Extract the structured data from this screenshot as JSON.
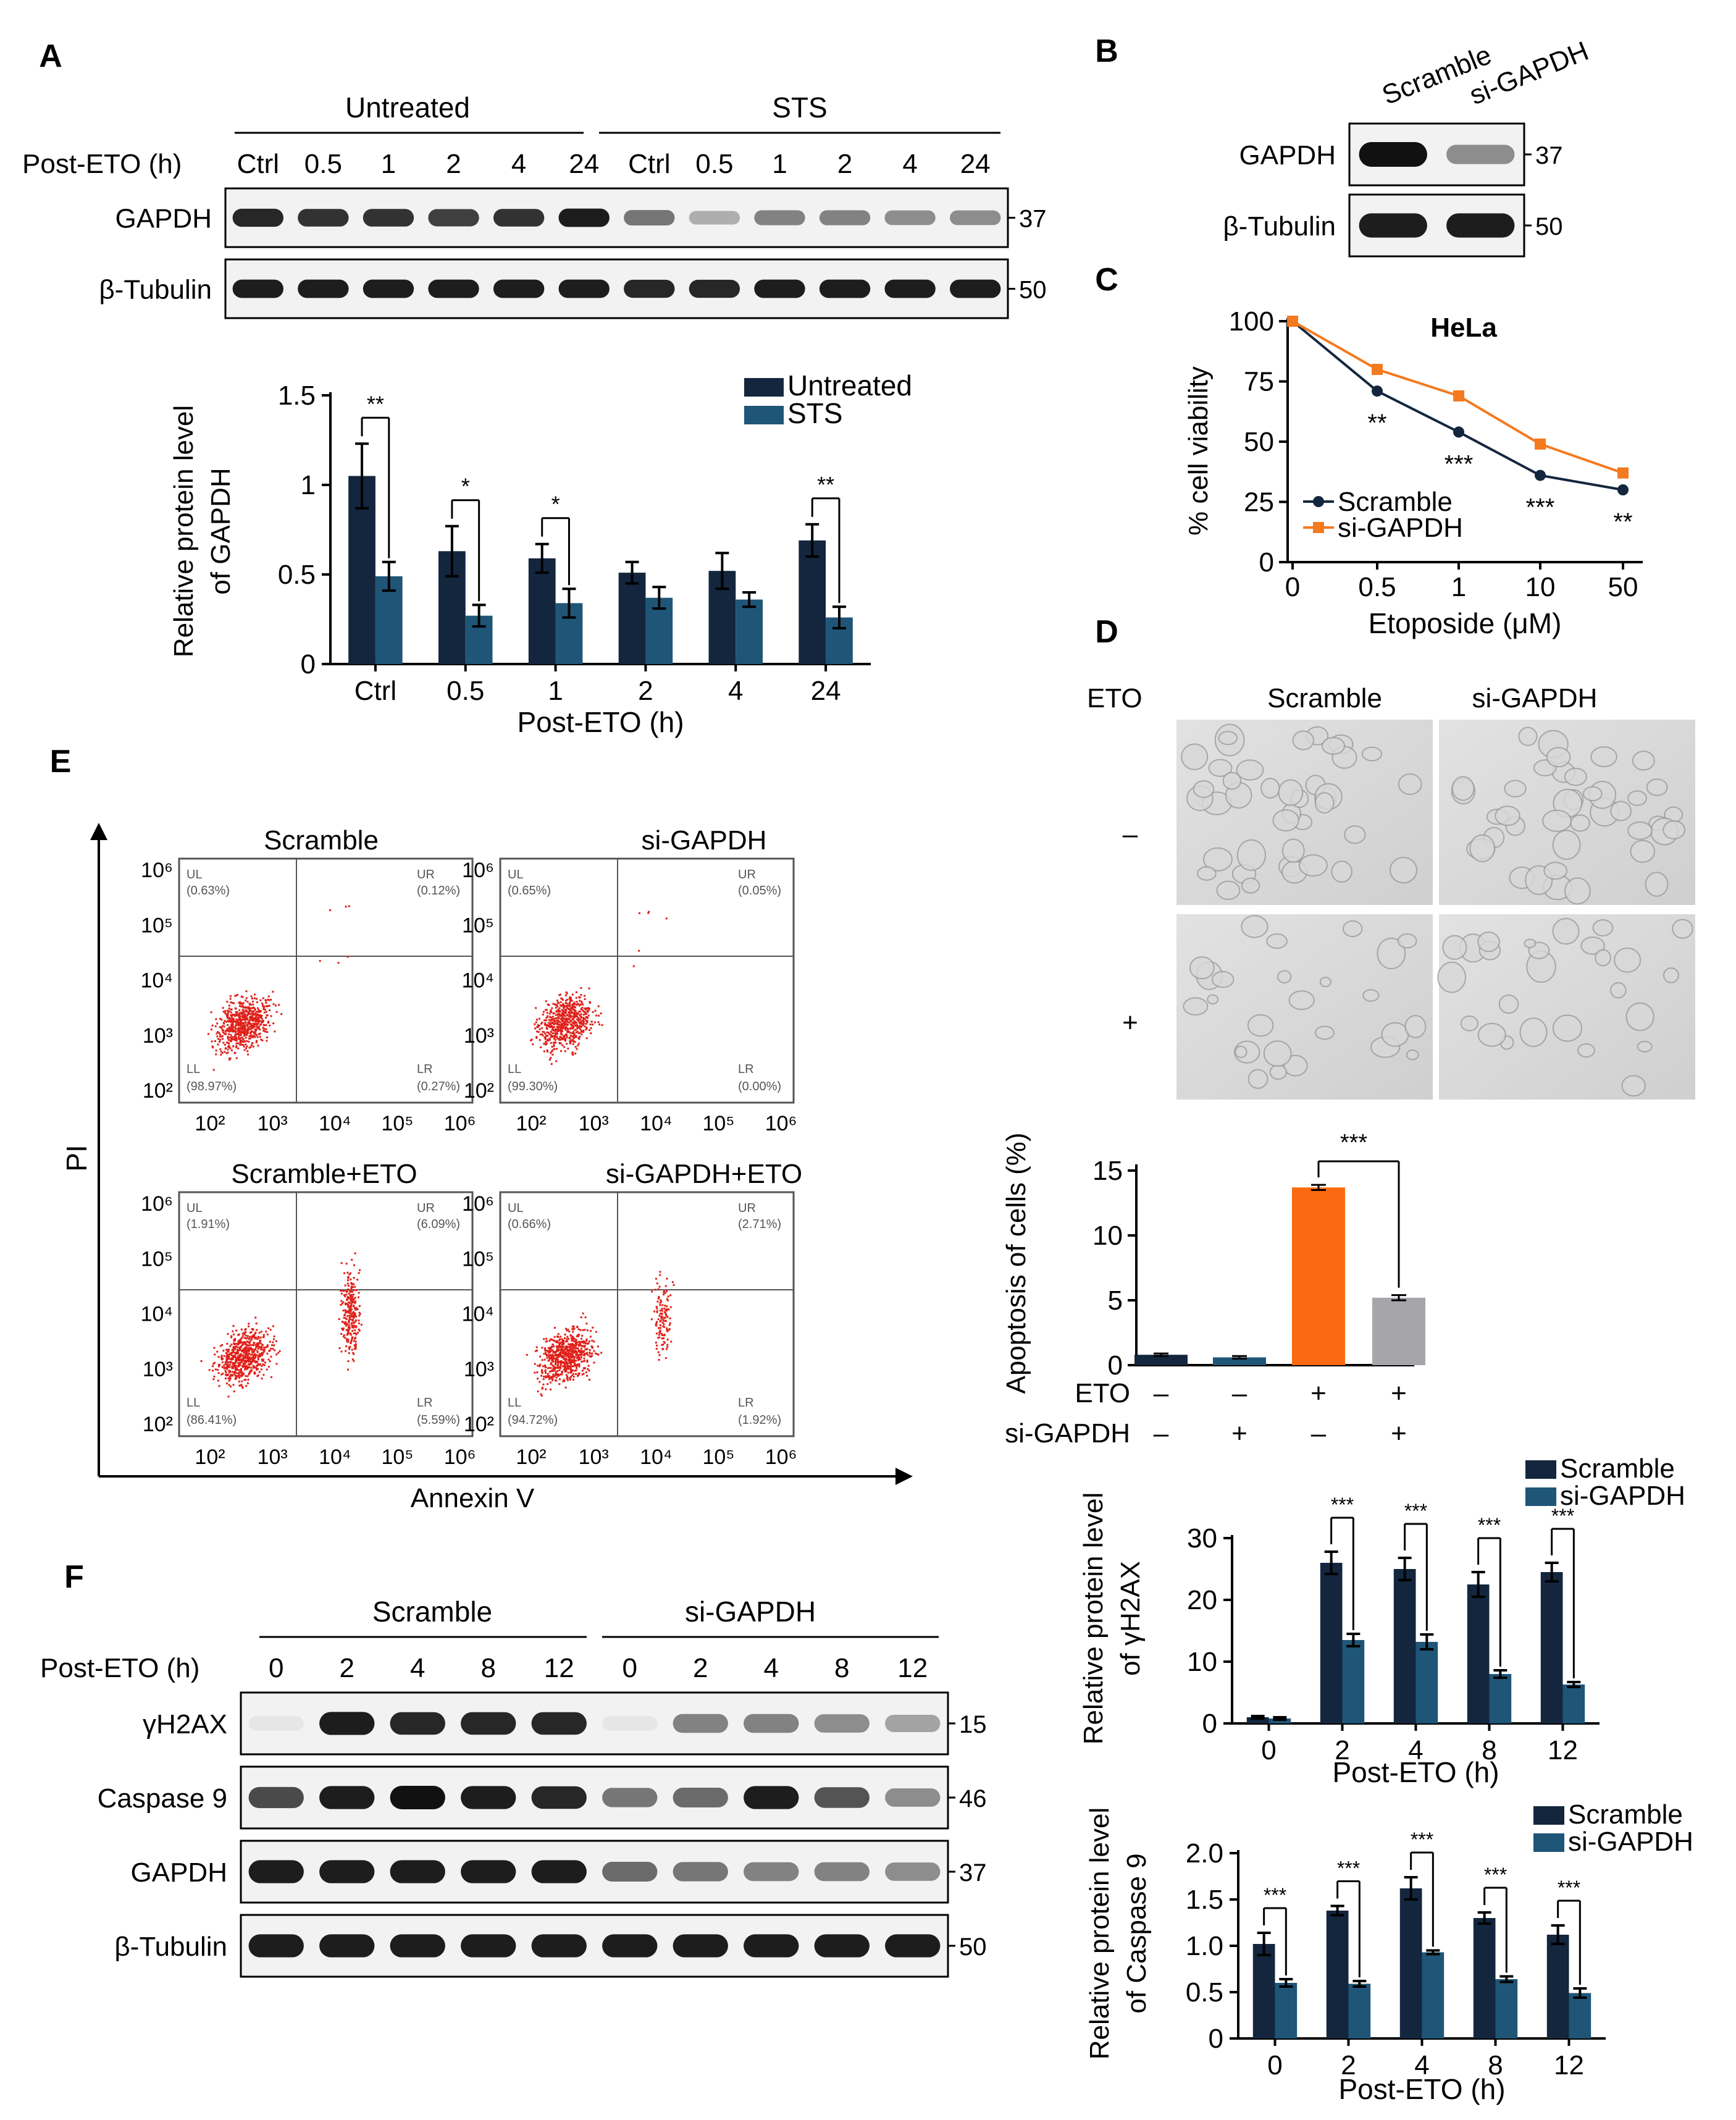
{
  "panel_labels": {
    "a": "A",
    "b": "B",
    "c": "C",
    "d": "D",
    "e": "E",
    "f": "F"
  },
  "colors": {
    "dark": "#13263e",
    "teal": "#1f5577",
    "orange": "#f47a20",
    "orange_bar": "#fb6a10",
    "gray": "#a6a6aa",
    "flow": "#e0201a"
  },
  "panel_a": {
    "blot": {
      "group_left": "Untreated",
      "group_right": "STS",
      "post_label": "Post-ETO (h)",
      "lanes": [
        "Ctrl",
        "0.5",
        "1",
        "2",
        "4",
        "24",
        "Ctrl",
        "0.5",
        "1",
        "2",
        "4",
        "24"
      ],
      "rows": [
        {
          "name": "GAPDH",
          "kda": "37",
          "intensity": [
            0.9,
            0.85,
            0.85,
            0.8,
            0.85,
            0.95,
            0.55,
            0.3,
            0.5,
            0.5,
            0.45,
            0.45
          ]
        },
        {
          "name": "β-Tubulin",
          "kda": "50",
          "intensity": [
            0.95,
            0.95,
            0.95,
            0.95,
            0.95,
            0.95,
            0.9,
            0.9,
            0.95,
            0.95,
            0.95,
            0.95
          ]
        }
      ]
    },
    "chart": {
      "type": "bar",
      "ylabel": [
        "Relative protein level",
        "of GAPDH"
      ],
      "xlabel": "Post-ETO (h)",
      "categories": [
        "Ctrl",
        "0.5",
        "1",
        "2",
        "4",
        "24"
      ],
      "yticks": [
        "0",
        "0.5",
        "1",
        "1.5"
      ],
      "ylim": [
        0,
        1.5
      ],
      "series": [
        {
          "name": "Untreated",
          "values": [
            1.05,
            0.63,
            0.59,
            0.51,
            0.52,
            0.69
          ],
          "errors": [
            0.18,
            0.14,
            0.08,
            0.06,
            0.1,
            0.09
          ]
        },
        {
          "name": "STS",
          "values": [
            0.49,
            0.27,
            0.34,
            0.37,
            0.36,
            0.26
          ],
          "errors": [
            0.08,
            0.06,
            0.08,
            0.06,
            0.04,
            0.06
          ]
        }
      ],
      "significance": [
        "**",
        "*",
        "*",
        "",
        "",
        "**"
      ]
    }
  },
  "panel_b": {
    "lanes": [
      "Scramble",
      "si-GAPDH"
    ],
    "rows": [
      {
        "name": "GAPDH",
        "kda": "37",
        "intensity": [
          1.0,
          0.45
        ]
      },
      {
        "name": "β-Tubulin",
        "kda": "50",
        "intensity": [
          0.95,
          0.95
        ]
      }
    ]
  },
  "panel_c": {
    "type": "line",
    "title": "HeLa",
    "ylabel": "% cell viability",
    "xlabel": "Etoposide (μM)",
    "categories": [
      "0",
      "0.5",
      "1",
      "10",
      "50"
    ],
    "yticks": [
      "0",
      "25",
      "50",
      "75",
      "100"
    ],
    "ylim": [
      0,
      100
    ],
    "series": [
      {
        "name": "Scramble",
        "values": [
          100,
          71,
          54,
          36,
          30
        ]
      },
      {
        "name": "si-GAPDH",
        "values": [
          100,
          80,
          69,
          49,
          37
        ]
      }
    ],
    "significance": [
      "",
      "**",
      "***",
      "***",
      "**"
    ]
  },
  "panel_d": {
    "eto_label": "ETO",
    "col_labels": [
      "Scramble",
      "si-GAPDH"
    ],
    "row_labels": [
      "–",
      "+"
    ],
    "chart": {
      "type": "bar",
      "ylabel": "Apoptosis of cells (%)",
      "yticks": [
        "0",
        "5",
        "10",
        "15"
      ],
      "ylim": [
        0,
        15
      ],
      "values": [
        0.8,
        0.6,
        13.7,
        5.2
      ],
      "errors": [
        0.1,
        0.1,
        0.2,
        0.2
      ],
      "row_labels": [
        "ETO",
        "si-GAPDH"
      ],
      "eto": [
        "–",
        "–",
        "+",
        "+"
      ],
      "si": [
        "–",
        "+",
        "–",
        "+"
      ],
      "significance": "***"
    }
  },
  "panel_e": {
    "ylabel": "PI",
    "xlabel": "Annexin V",
    "ticks": [
      "10²",
      "10³",
      "10⁴",
      "10⁵",
      "10⁶"
    ],
    "plots": [
      {
        "title": "Scramble",
        "ul": "UL",
        "ur": "UR",
        "ll": "LL",
        "lr": "LR",
        "ul_pct": "(0.63%)",
        "ur_pct": "(0.12%)",
        "ll_pct": "(98.97%)",
        "lr_pct": "(0.27%)"
      },
      {
        "title": "si-GAPDH",
        "ul": "UL",
        "ur": "UR",
        "ll": "LL",
        "lr": "LR",
        "ul_pct": "(0.65%)",
        "ur_pct": "(0.05%)",
        "ll_pct": "(99.30%)",
        "lr_pct": "(0.00%)"
      },
      {
        "title": "Scramble+ETO",
        "ul": "UL",
        "ur": "UR",
        "ll": "LL",
        "lr": "LR",
        "ul_pct": "(1.91%)",
        "ur_pct": "(6.09%)",
        "ll_pct": "(86.41%)",
        "lr_pct": "(5.59%)"
      },
      {
        "title": "si-GAPDH+ETO",
        "ul": "UL",
        "ur": "UR",
        "ll": "LL",
        "lr": "LR",
        "ul_pct": "(0.66%)",
        "ur_pct": "(2.71%)",
        "ll_pct": "(94.72%)",
        "lr_pct": "(1.92%)"
      }
    ]
  },
  "panel_f": {
    "blot": {
      "group_left": "Scramble",
      "group_right": "si-GAPDH",
      "post_label": "Post-ETO (h)",
      "lanes": [
        "0",
        "2",
        "4",
        "8",
        "12",
        "0",
        "2",
        "4",
        "8",
        "12"
      ],
      "rows": [
        {
          "name": "γH2AX",
          "kda": "15",
          "intensity": [
            0.05,
            0.95,
            0.9,
            0.9,
            0.9,
            0.05,
            0.5,
            0.5,
            0.45,
            0.35
          ]
        },
        {
          "name": "Caspase 9",
          "kda": "46",
          "intensity": [
            0.75,
            0.95,
            1.0,
            0.95,
            0.9,
            0.55,
            0.6,
            0.95,
            0.7,
            0.45
          ]
        },
        {
          "name": "GAPDH",
          "kda": "37",
          "intensity": [
            0.95,
            0.95,
            0.95,
            0.95,
            0.95,
            0.6,
            0.55,
            0.5,
            0.5,
            0.45
          ]
        },
        {
          "name": "β-Tubulin",
          "kda": "50",
          "intensity": [
            0.95,
            0.95,
            0.95,
            0.95,
            0.95,
            0.95,
            0.95,
            0.95,
            0.95,
            0.95
          ]
        }
      ]
    },
    "chart_h2ax": {
      "type": "bar",
      "ylabel": [
        "Relative protein level",
        "of γH2AX"
      ],
      "xlabel": "Post-ETO (h)",
      "categories": [
        "0",
        "2",
        "4",
        "8",
        "12"
      ],
      "yticks": [
        "0",
        "10",
        "20",
        "30"
      ],
      "ylim": [
        0,
        30
      ],
      "series": [
        {
          "name": "Scramble",
          "values": [
            1.0,
            26.0,
            25.0,
            22.5,
            24.5
          ],
          "errors": [
            0.2,
            1.8,
            1.8,
            2.0,
            1.5
          ]
        },
        {
          "name": "si-GAPDH",
          "values": [
            0.8,
            13.5,
            13.2,
            8.0,
            6.3
          ],
          "errors": [
            0.2,
            1.0,
            1.2,
            0.6,
            0.4
          ]
        }
      ],
      "significance": [
        "",
        "***",
        "***",
        "***",
        "***"
      ]
    },
    "chart_casp9": {
      "type": "bar",
      "ylabel": [
        "Relative protein level",
        "of Caspase 9"
      ],
      "xlabel": "Post-ETO (h)",
      "categories": [
        "0",
        "2",
        "4",
        "8",
        "12"
      ],
      "yticks": [
        "0",
        "0.5",
        "1.0",
        "1.5",
        "2.0"
      ],
      "ylim": [
        0,
        2
      ],
      "series": [
        {
          "name": "Scramble",
          "values": [
            1.02,
            1.38,
            1.62,
            1.3,
            1.12
          ],
          "errors": [
            0.12,
            0.05,
            0.12,
            0.06,
            0.1
          ]
        },
        {
          "name": "si-GAPDH",
          "values": [
            0.6,
            0.59,
            0.93,
            0.64,
            0.49
          ],
          "errors": [
            0.04,
            0.03,
            0.02,
            0.03,
            0.05
          ]
        }
      ],
      "significance": [
        "***",
        "***",
        "***",
        "***",
        "***"
      ]
    }
  },
  "chart_data": [
    {
      "type": "bar",
      "title": "Relative protein level of GAPDH",
      "categories": [
        "Ctrl",
        "0.5",
        "1",
        "2",
        "4",
        "24"
      ],
      "xlabel": "Post-ETO (h)",
      "ylabel": "Relative protein level of GAPDH",
      "ylim": [
        0,
        1.5
      ],
      "series": [
        {
          "name": "Untreated",
          "values": [
            1.05,
            0.63,
            0.59,
            0.51,
            0.52,
            0.69
          ]
        },
        {
          "name": "STS",
          "values": [
            0.49,
            0.27,
            0.34,
            0.37,
            0.36,
            0.26
          ]
        }
      ]
    },
    {
      "type": "line",
      "title": "HeLa",
      "x": [
        "0",
        "0.5",
        "1",
        "10",
        "50"
      ],
      "xlabel": "Etoposide (μM)",
      "ylabel": "% cell viability",
      "ylim": [
        0,
        100
      ],
      "series": [
        {
          "name": "Scramble",
          "values": [
            100,
            71,
            54,
            36,
            30
          ]
        },
        {
          "name": "si-GAPDH",
          "values": [
            100,
            80,
            69,
            49,
            37
          ]
        }
      ]
    },
    {
      "type": "bar",
      "title": "Apoptosis of cells (%)",
      "categories": [
        "ETO– si–",
        "ETO– si+",
        "ETO+ si–",
        "ETO+ si+"
      ],
      "ylabel": "Apoptosis of cells (%)",
      "ylim": [
        0,
        15
      ],
      "values": [
        0.8,
        0.6,
        13.7,
        5.2
      ]
    },
    {
      "type": "bar",
      "title": "Relative protein level of γH2AX",
      "categories": [
        "0",
        "2",
        "4",
        "8",
        "12"
      ],
      "xlabel": "Post-ETO (h)",
      "ylim": [
        0,
        30
      ],
      "series": [
        {
          "name": "Scramble",
          "values": [
            1.0,
            26.0,
            25.0,
            22.5,
            24.5
          ]
        },
        {
          "name": "si-GAPDH",
          "values": [
            0.8,
            13.5,
            13.2,
            8.0,
            6.3
          ]
        }
      ]
    },
    {
      "type": "bar",
      "title": "Relative protein level of Caspase 9",
      "categories": [
        "0",
        "2",
        "4",
        "8",
        "12"
      ],
      "xlabel": "Post-ETO (h)",
      "ylim": [
        0,
        2
      ],
      "series": [
        {
          "name": "Scramble",
          "values": [
            1.02,
            1.38,
            1.62,
            1.3,
            1.12
          ]
        },
        {
          "name": "si-GAPDH",
          "values": [
            0.6,
            0.59,
            0.93,
            0.64,
            0.49
          ]
        }
      ]
    }
  ]
}
